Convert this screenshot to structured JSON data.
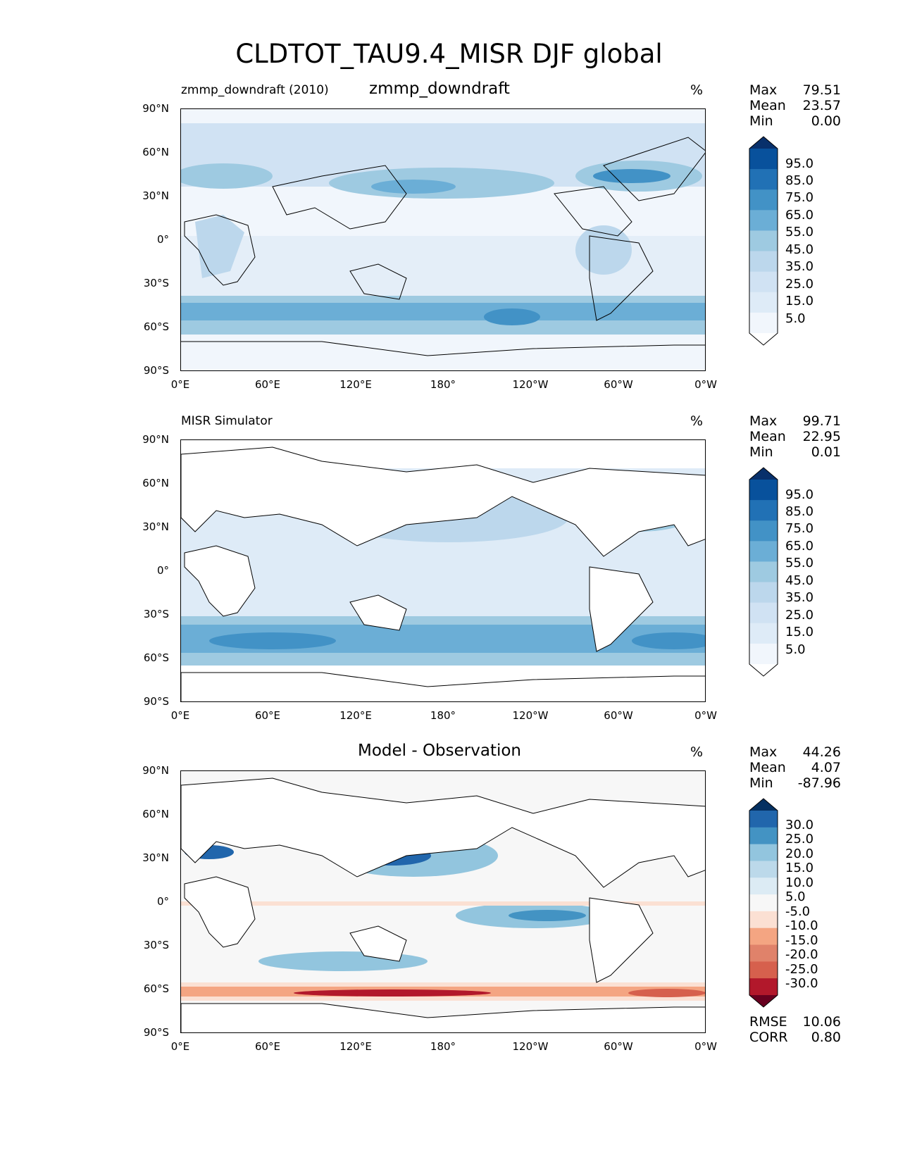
{
  "figure": {
    "title": "CLDTOT_TAU9.4_MISR DJF global"
  },
  "axes": {
    "lat_labels": [
      "90°N",
      "60°N",
      "30°N",
      "0°",
      "30°S",
      "60°S",
      "90°S"
    ],
    "lon_labels": [
      "0°E",
      "60°E",
      "120°E",
      "180°",
      "120°W",
      "60°W",
      "0°W"
    ]
  },
  "panels": [
    {
      "left_title": "zmmp_downdraft (2010)",
      "center_title": "zmmp_downdraft",
      "units": "%",
      "stats": {
        "max_label": "Max",
        "max": "79.51",
        "mean_label": "Mean",
        "mean": "23.57",
        "min_label": "Min",
        "min": "0.00"
      },
      "colorbar": {
        "labels": [
          "95.0",
          "85.0",
          "75.0",
          "65.0",
          "55.0",
          "45.0",
          "35.0",
          "25.0",
          "15.0",
          "5.0"
        ],
        "colors": [
          "#08306b",
          "#08519c",
          "#2171b5",
          "#4292c6",
          "#6baed6",
          "#9ecae1",
          "#bcd7ec",
          "#d0e2f3",
          "#deebf7",
          "#f1f6fc",
          "#ffffff"
        ]
      }
    },
    {
      "left_title": "MISR Simulator",
      "center_title": "",
      "units": "%",
      "stats": {
        "max_label": "Max",
        "max": "99.71",
        "mean_label": "Mean",
        "mean": "22.95",
        "min_label": "Min",
        "min": "0.01"
      },
      "colorbar": {
        "labels": [
          "95.0",
          "85.0",
          "75.0",
          "65.0",
          "55.0",
          "45.0",
          "35.0",
          "25.0",
          "15.0",
          "5.0"
        ],
        "colors": [
          "#08306b",
          "#08519c",
          "#2171b5",
          "#4292c6",
          "#6baed6",
          "#9ecae1",
          "#bcd7ec",
          "#d0e2f3",
          "#deebf7",
          "#f1f6fc",
          "#ffffff"
        ]
      }
    },
    {
      "left_title": "",
      "center_title": "Model - Observation",
      "units": "%",
      "stats": {
        "max_label": "Max",
        "max": "44.26",
        "mean_label": "Mean",
        "mean": "4.07",
        "min_label": "Min",
        "min": "-87.96"
      },
      "colorbar": {
        "labels": [
          "30.0",
          "25.0",
          "20.0",
          "15.0",
          "10.0",
          "5.0",
          "-5.0",
          "-10.0",
          "-15.0",
          "-20.0",
          "-25.0",
          "-30.0"
        ],
        "colors": [
          "#053061",
          "#2166ac",
          "#4393c3",
          "#92c5de",
          "#bcd9ea",
          "#dcebf4",
          "#f7f7f7",
          "#fbe0d3",
          "#f4a582",
          "#e0826a",
          "#d6604d",
          "#b2182b",
          "#67001f"
        ]
      },
      "metrics": {
        "rmse_label": "RMSE",
        "rmse": "10.06",
        "corr_label": "CORR",
        "corr": "0.80"
      }
    }
  ]
}
